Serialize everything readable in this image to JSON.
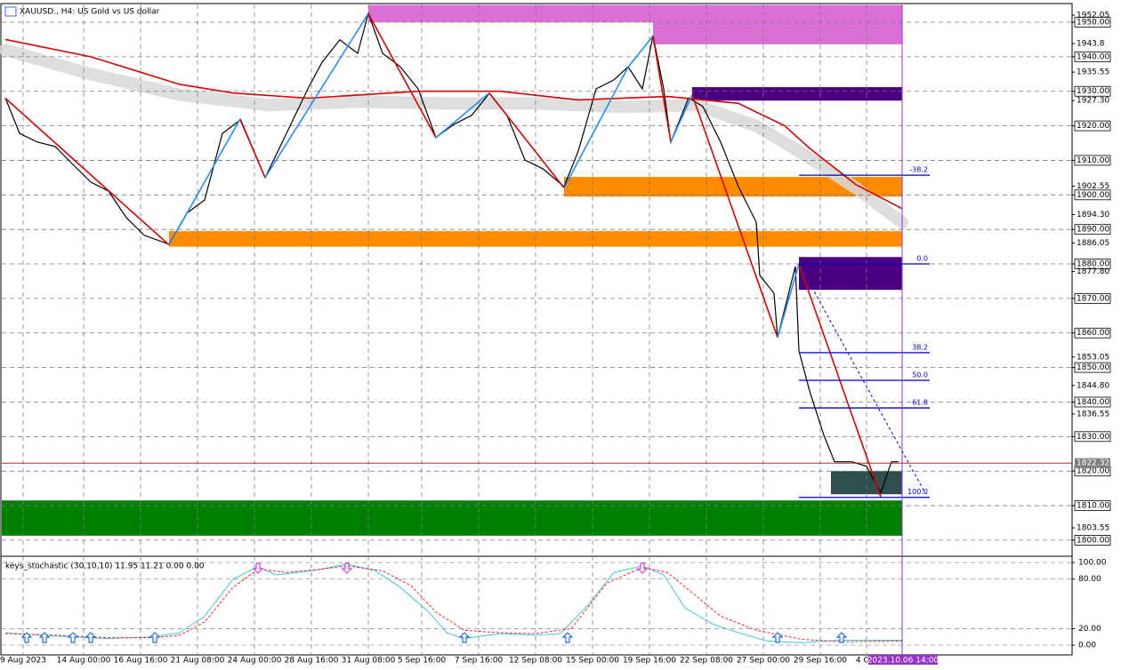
{
  "chart_data": [
    {
      "type": "price",
      "title": "XAUUSD., H4: US Gold vs US dollar",
      "color": "#000000",
      "x": [
        1,
        5,
        10,
        15,
        20,
        25,
        30,
        35,
        40,
        47,
        52,
        57,
        62,
        67,
        74,
        80,
        86,
        90,
        95,
        100,
        103,
        107,
        112,
        117,
        122,
        127,
        132,
        137,
        142,
        147,
        152,
        158,
        162,
        167,
        172,
        176,
        180,
        183,
        186,
        188,
        193,
        197,
        202,
        207,
        212,
        213,
        217,
        218,
        223,
        224,
        227,
        231,
        234,
        239,
        243,
        247,
        250,
        252
      ],
      "values": [
        1928.1,
        1917.8,
        1915.3,
        1914.0,
        1908.8,
        1903.7,
        1901.1,
        1893.4,
        1888.3,
        1885.7,
        1894.7,
        1898.5,
        1917.8,
        1921.7,
        1905.0,
        1917.8,
        1930.7,
        1938.4,
        1944.9,
        1941.0,
        1952.6,
        1941.0,
        1937.1,
        1930.7,
        1916.6,
        1920.4,
        1923.0,
        1929.4,
        1923.0,
        1910.1,
        1907.6,
        1902.4,
        1912.7,
        1930.7,
        1933.3,
        1937.1,
        1930.7,
        1946.1,
        1930.7,
        1915.3,
        1928.1,
        1925.6,
        1915.3,
        1902.4,
        1892.1,
        1876.7,
        1871.5,
        1858.7,
        1879.3,
        1854.8,
        1843.2,
        1830.4,
        1822.7,
        1822.7,
        1821.4,
        1813.7,
        1822.7,
        1822.7
      ],
      "xlim": [
        0,
        300.75
      ],
      "ylim": [
        1795.6,
        1955.15
      ],
      "xticks": [
        {
          "value": 6,
          "label": "9 Aug 2023"
        },
        {
          "value": 23,
          "label": "14 Aug 00:00"
        },
        {
          "value": 39,
          "label": "16 Aug 16:00"
        },
        {
          "value": 55,
          "label": "21 Aug 08:00"
        },
        {
          "value": 71,
          "label": "24 Aug 00:00"
        },
        {
          "value": 87,
          "label": "28 Aug 16:00"
        },
        {
          "value": 103,
          "label": "31 Aug 08:00"
        },
        {
          "value": 118,
          "label": "5 Sep 16:00"
        },
        {
          "value": 134,
          "label": "7 Sep 16:00"
        },
        {
          "value": 150,
          "label": "12 Sep 08:00"
        },
        {
          "value": 166,
          "label": "15 Sep 00:00"
        },
        {
          "value": 182,
          "label": "19 Sep 16:00"
        },
        {
          "value": 198,
          "label": "22 Sep 08:00"
        },
        {
          "value": 214,
          "label": "27 Sep 00:00"
        },
        {
          "value": 230,
          "label": "29 Sep 16:00"
        },
        {
          "value": 243,
          "label": "4 Oct"
        }
      ],
      "yticks": [
        1952.05,
        1943.8,
        {
          "value": 1935.55,
          "label": "1935.55"
        },
        {
          "value": 1927.3,
          "label": "1927.30"
        },
        1902.55,
        {
          "value": 1894.3,
          "label": "1894.30"
        },
        1886.05,
        {
          "value": 1877.8,
          "label": "1877.80"
        },
        1853.05,
        {
          "value": 1844.8,
          "label": "1844.80"
        },
        1836.55,
        1803.55
      ],
      "price_levels": [
        {
          "value": 1950,
          "label": "1950.00"
        },
        {
          "value": 1940,
          "label": "1940.00"
        },
        {
          "value": 1930,
          "label": "1930.00"
        },
        {
          "value": 1920,
          "label": "1920.00"
        },
        {
          "value": 1910,
          "label": "1910.00"
        },
        {
          "value": 1900,
          "label": "1900.00"
        },
        {
          "value": 1890,
          "label": "1890.00"
        },
        {
          "value": 1880,
          "label": "1880.00"
        },
        {
          "value": 1870,
          "label": "1870.00"
        },
        {
          "value": 1860,
          "label": "1860.00"
        },
        {
          "value": 1850,
          "label": "1850.00"
        },
        {
          "value": 1840,
          "label": "1840.00"
        },
        {
          "value": 1830,
          "label": "1830.00"
        },
        {
          "value": 1820,
          "label": "1820.00"
        },
        {
          "value": 1810,
          "label": "1810.00"
        },
        {
          "value": 1800,
          "label": "1800.00"
        }
      ],
      "current_price": 1822.32,
      "current_price_color": "#c00000",
      "current_time": {
        "value": 253,
        "label": "2023.10.06 14:00"
      },
      "current_time_color": "#9932cc",
      "zones": [
        {
          "color": "#da70d6",
          "x": [
            103,
            253
          ],
          "low": 1950.0,
          "high": 1955.0
        },
        {
          "color": "#da70d6",
          "x": [
            183,
            253
          ],
          "low": 1943.6,
          "high": 1950.0
        },
        {
          "color": "#4b0082",
          "x": [
            194,
            253
          ],
          "low": 1927.3,
          "high": 1931.2
        },
        {
          "color": "#ff8c00",
          "x": [
            158,
            253
          ],
          "low": 1899.5,
          "high": 1905.2
        },
        {
          "color": "#ff8c00",
          "x": [
            47,
            253
          ],
          "low": 1885.0,
          "high": 1889.5
        },
        {
          "color": "#4b0082",
          "x": [
            224,
            253
          ],
          "low": 1872.5,
          "high": 1882.0
        },
        {
          "color": "#008000",
          "x": [
            0,
            253
          ],
          "low": 1801.3,
          "high": 1811.5
        },
        {
          "color": "#2f4f4f",
          "x": [
            233,
            253
          ],
          "low": 1813.3,
          "high": 1820.0
        }
      ],
      "ma_band": {
        "color": "#d8d8d8",
        "x": [
          1,
          25,
          50,
          75,
          100,
          125,
          150,
          175,
          195,
          212,
          225,
          240,
          253
        ],
        "values": [
          1942,
          1935,
          1929,
          1926,
          1927,
          1926.5,
          1926.5,
          1925.5,
          1926,
          1920,
          1912,
          1902,
          1892
        ]
      },
      "moving_average": {
        "color": "#dd0000",
        "x": [
          1,
          25,
          50,
          65,
          86,
          117,
          140,
          162,
          187,
          207,
          220,
          227,
          240,
          253
        ],
        "values": [
          1945,
          1940,
          1932,
          1929.5,
          1928,
          1930,
          1930,
          1927.5,
          1928.5,
          1926.5,
          1920,
          1913.5,
          1903,
          1896
        ]
      },
      "zigzag": {
        "up_color": "#1e90ff",
        "down_color": "#dd0000",
        "x": [
          1,
          47,
          67,
          74,
          103,
          122,
          137,
          158,
          176,
          183,
          188,
          194,
          218,
          224,
          247
        ],
        "values": [
          1928,
          1885.5,
          1922,
          1905,
          1952.5,
          1916.6,
          1929.5,
          1902,
          1937,
          1946,
          1915.3,
          1929,
          1858.7,
          1880,
          1812.5
        ]
      },
      "fibonacci": {
        "color": "#0000c8",
        "x": [
          224,
          260.75
        ],
        "levels": [
          {
            "label": "-38.2",
            "value": 1905.7
          },
          {
            "label": "0.0",
            "value": 1880
          },
          {
            "label": "38.2",
            "value": 1854.3
          },
          {
            "label": "50.0",
            "value": 1846.3
          },
          {
            "label": "61.8",
            "value": 1838.3
          },
          {
            "label": "100.0",
            "value": 1812.4
          }
        ]
      }
    },
    {
      "type": "stochastic",
      "label": "keys_stochastic (30,10,10) 11.95 11.21 0.00 0.00",
      "xlim": [
        0,
        300.75
      ],
      "ylim": [
        -11.8,
        106.5
      ],
      "grid": true,
      "yticks": [
        {
          "value": 100,
          "label": "100.00"
        },
        {
          "value": 80,
          "label": "80.00"
        },
        {
          "value": 20,
          "label": "20.00"
        },
        {
          "value": 0,
          "label": "0.00"
        }
      ],
      "series": [
        {
          "color": "#3ec8e0",
          "style": "solid",
          "x": [
            1,
            15,
            30,
            42,
            50,
            57,
            65,
            72,
            77,
            87,
            97,
            105,
            112,
            120,
            125,
            130,
            140,
            150,
            157,
            165,
            172,
            180,
            186,
            192,
            200,
            207,
            215,
            225,
            235,
            253
          ],
          "values": [
            15,
            11,
            8,
            10,
            15,
            35,
            80,
            95,
            85,
            90,
            98,
            90,
            70,
            40,
            15,
            8,
            14,
            12,
            14,
            50,
            88,
            96,
            85,
            45,
            25,
            15,
            5,
            3,
            6,
            6
          ]
        },
        {
          "color": "#ff2020",
          "style": "dashed",
          "x": [
            1,
            15,
            30,
            42,
            50,
            57,
            65,
            72,
            80,
            90,
            97,
            107,
            115,
            122,
            130,
            140,
            150,
            160,
            170,
            180,
            187,
            195,
            202,
            212,
            225,
            237,
            253
          ],
          "values": [
            14,
            12,
            9,
            9,
            12,
            28,
            70,
            92,
            88,
            92,
            96,
            90,
            72,
            40,
            18,
            15,
            14,
            20,
            75,
            94,
            88,
            60,
            35,
            18,
            7,
            4,
            5
          ]
        }
      ],
      "signals": {
        "up": {
          "color": "#1e6fd9",
          "x": [
            7,
            12,
            20,
            25,
            43,
            130,
            159,
            218,
            236
          ]
        },
        "down": {
          "color": "#e040e0",
          "x": [
            72,
            97,
            180
          ]
        }
      }
    }
  ]
}
